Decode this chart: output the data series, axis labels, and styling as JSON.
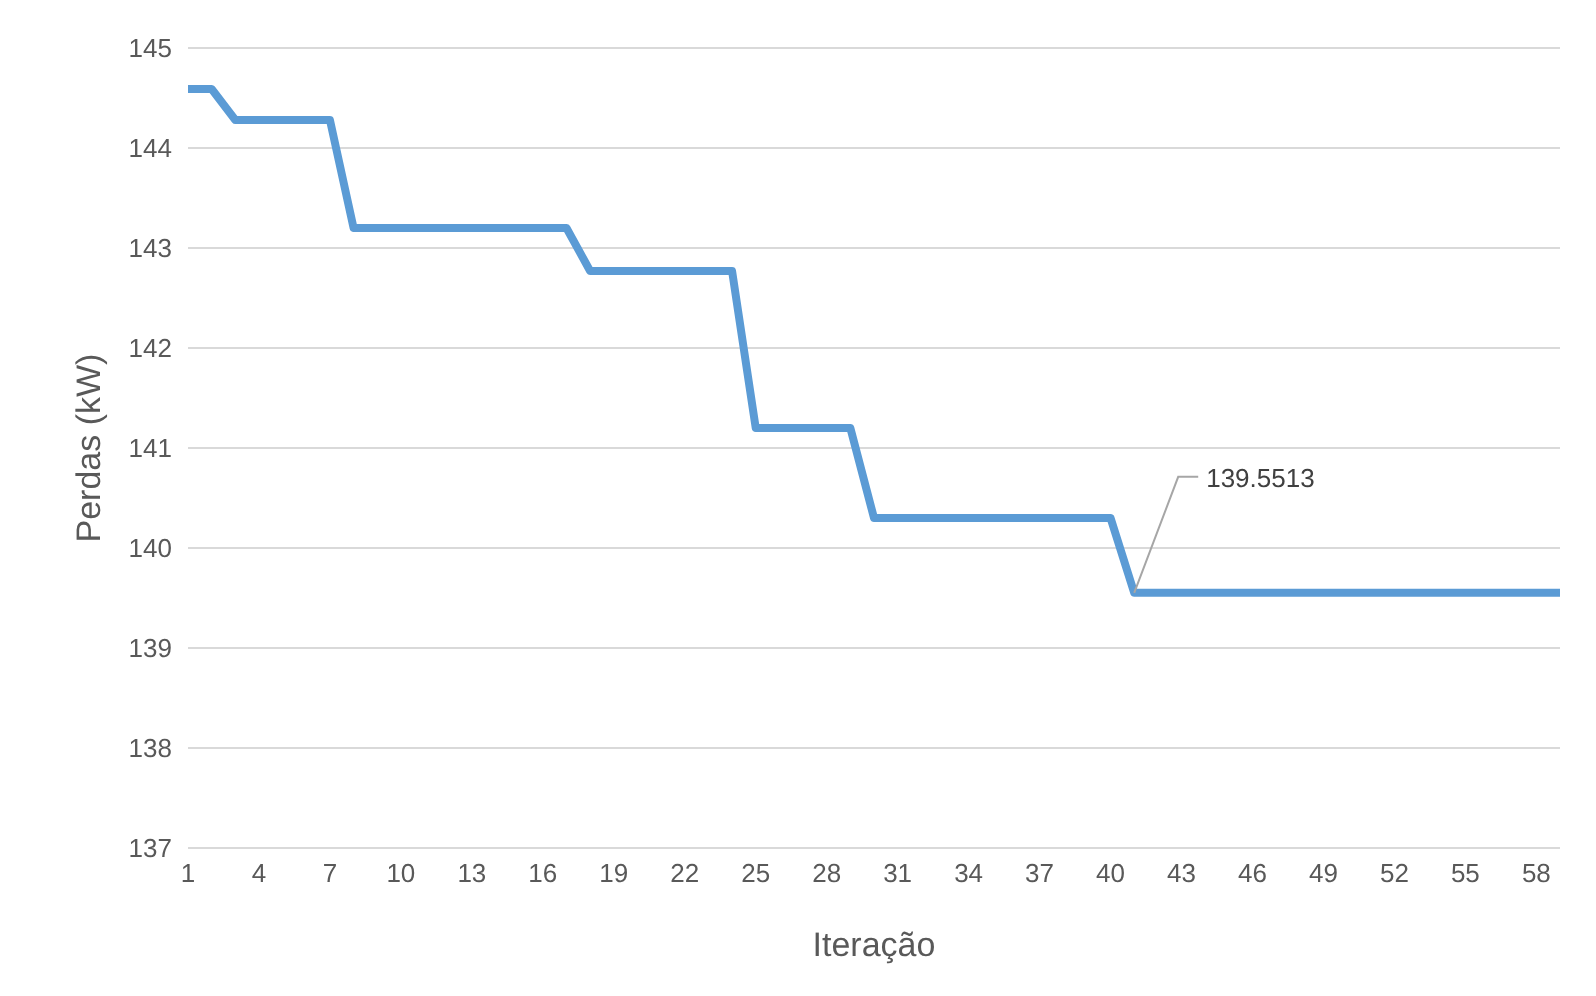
{
  "chart_data": {
    "type": "line",
    "xlabel": "Iteração",
    "ylabel": "Perdas (kW)",
    "categories": [
      "1",
      null,
      null,
      "4",
      null,
      null,
      "7",
      null,
      null,
      "10",
      null,
      null,
      "13",
      null,
      null,
      "16",
      null,
      null,
      "19",
      null,
      null,
      "22",
      null,
      null,
      "25",
      null,
      null,
      "28",
      null,
      null,
      "31",
      null,
      null,
      "34",
      null,
      null,
      "37",
      null,
      null,
      "40",
      null,
      null,
      "43",
      null,
      null,
      "46",
      null,
      null,
      "49",
      null,
      null,
      "52",
      null,
      null,
      "55",
      null,
      null,
      "58",
      null
    ],
    "series": [
      {
        "color": "#5b9bd5",
        "values": [
          144.59,
          144.59,
          144.28,
          144.28,
          144.28,
          144.28,
          144.28,
          143.2,
          143.2,
          143.2,
          143.2,
          143.2,
          143.2,
          143.2,
          143.2,
          143.2,
          143.2,
          142.77,
          142.77,
          142.77,
          142.77,
          142.77,
          142.77,
          142.77,
          141.2,
          141.2,
          141.2,
          141.2,
          141.2,
          140.3,
          140.3,
          140.3,
          140.3,
          140.3,
          140.3,
          140.3,
          140.3,
          140.3,
          140.3,
          140.3,
          139.5513,
          139.5513,
          139.5513,
          139.5513,
          139.5513,
          139.5513,
          139.5513,
          139.5513,
          139.5513,
          139.5513,
          139.5513,
          139.5513,
          139.5513,
          139.5513,
          139.5513,
          139.5513,
          139.5513,
          139.5513,
          139.5513
        ],
        "value_labels": [
          null,
          null,
          null,
          null,
          null,
          null,
          null,
          null,
          null,
          null,
          null,
          null,
          null,
          null,
          null,
          null,
          null,
          null,
          null,
          null,
          null,
          null,
          null,
          null,
          null,
          null,
          null,
          null,
          null,
          null,
          null,
          null,
          null,
          null,
          null,
          null,
          null,
          null,
          null,
          null,
          "139.5513",
          null,
          null,
          null,
          null,
          null,
          null,
          null,
          null,
          null,
          null,
          null,
          null,
          null,
          null,
          null,
          null,
          null,
          null
        ]
      }
    ],
    "ylim": [
      137,
      145
    ],
    "yticks": [
      137,
      138,
      139,
      140,
      141,
      142,
      143,
      144,
      145
    ],
    "grid": "y",
    "legend": false,
    "marker": "none",
    "line_style": "solid"
  }
}
